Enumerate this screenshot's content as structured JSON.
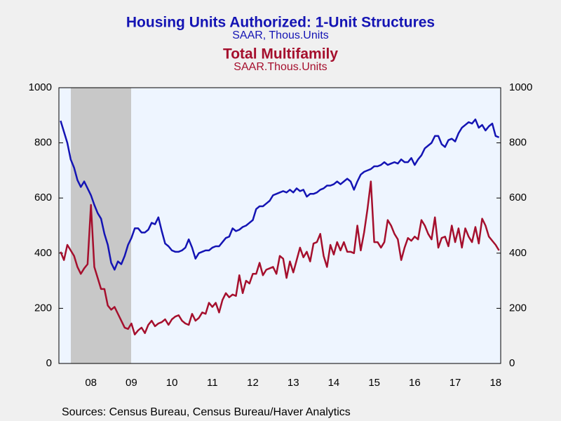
{
  "chart_data": {
    "type": "line",
    "series": [
      {
        "name": "Housing Units Authorized: 1-Unit Structures",
        "units": "SAAR, Thous.Units",
        "color": "#1414b4",
        "values": [
          880,
          840,
          800,
          740,
          710,
          665,
          640,
          660,
          635,
          610,
          575,
          545,
          525,
          470,
          430,
          365,
          340,
          370,
          360,
          390,
          430,
          455,
          490,
          490,
          475,
          475,
          485,
          510,
          505,
          530,
          480,
          435,
          425,
          410,
          405,
          405,
          410,
          420,
          450,
          420,
          380,
          400,
          405,
          410,
          410,
          420,
          425,
          425,
          440,
          455,
          460,
          490,
          480,
          485,
          495,
          500,
          510,
          520,
          560,
          570,
          570,
          580,
          590,
          610,
          615,
          620,
          625,
          620,
          630,
          620,
          635,
          625,
          630,
          605,
          615,
          615,
          620,
          630,
          635,
          645,
          645,
          650,
          660,
          650,
          660,
          670,
          660,
          630,
          660,
          685,
          695,
          700,
          705,
          715,
          715,
          720,
          730,
          720,
          725,
          730,
          725,
          740,
          730,
          730,
          745,
          720,
          740,
          755,
          780,
          790,
          800,
          825,
          825,
          795,
          785,
          810,
          815,
          805,
          835,
          855,
          865,
          875,
          870,
          885,
          855,
          865,
          845,
          860,
          870,
          825,
          820
        ]
      },
      {
        "name": "Total Multifamily",
        "units": "SAAR.Thous.Units",
        "color": "#a50f2d",
        "axis": "y2",
        "values": [
          405,
          375,
          430,
          410,
          390,
          350,
          325,
          345,
          360,
          575,
          350,
          310,
          270,
          270,
          210,
          195,
          205,
          180,
          155,
          130,
          125,
          145,
          105,
          120,
          130,
          110,
          140,
          155,
          135,
          145,
          150,
          160,
          140,
          160,
          170,
          175,
          155,
          145,
          140,
          180,
          155,
          165,
          185,
          180,
          220,
          205,
          220,
          185,
          230,
          255,
          240,
          250,
          245,
          320,
          255,
          300,
          290,
          325,
          325,
          365,
          320,
          340,
          345,
          350,
          325,
          390,
          380,
          310,
          370,
          330,
          375,
          420,
          385,
          405,
          370,
          435,
          440,
          470,
          390,
          350,
          430,
          395,
          440,
          410,
          440,
          405,
          405,
          400,
          500,
          410,
          475,
          560,
          660,
          440,
          440,
          420,
          440,
          520,
          500,
          470,
          450,
          375,
          420,
          455,
          445,
          460,
          450,
          520,
          500,
          470,
          450,
          530,
          420,
          455,
          460,
          425,
          500,
          440,
          490,
          420,
          490,
          460,
          440,
          495,
          435,
          525,
          500,
          460,
          445,
          430,
          410
        ]
      }
    ],
    "categories": [
      null,
      null,
      null,
      null,
      null,
      null,
      null,
      null,
      null,
      "08",
      null,
      null,
      null,
      null,
      null,
      null,
      null,
      null,
      null,
      null,
      null,
      "09",
      null,
      null,
      null,
      null,
      null,
      null,
      null,
      null,
      null,
      null,
      null,
      "10",
      null,
      null,
      null,
      null,
      null,
      null,
      null,
      null,
      null,
      null,
      null,
      "11",
      null,
      null,
      null,
      null,
      null,
      null,
      null,
      null,
      null,
      null,
      null,
      "12",
      null,
      null,
      null,
      null,
      null,
      null,
      null,
      null,
      null,
      null,
      null,
      "13",
      null,
      null,
      null,
      null,
      null,
      null,
      null,
      null,
      null,
      null,
      null,
      "14",
      null,
      null,
      null,
      null,
      null,
      null,
      null,
      null,
      null,
      null,
      null,
      "15",
      null,
      null,
      null,
      null,
      null,
      null,
      null,
      null,
      null,
      null,
      null,
      "16",
      null,
      null,
      null,
      null,
      null,
      null,
      null,
      null,
      null,
      null,
      null,
      "17",
      null,
      null,
      null,
      null,
      null,
      null,
      null,
      null,
      null,
      null,
      null,
      "18",
      null
    ],
    "ylim": [
      0,
      1000
    ],
    "yticks": [
      0,
      200,
      400,
      600,
      800,
      1000
    ],
    "y2lim": [
      0,
      1000
    ],
    "y2ticks": [
      0,
      200,
      400,
      600,
      800,
      1000
    ],
    "source": "Sources:  Census Bureau, Census Bureau/Haver Analytics"
  }
}
